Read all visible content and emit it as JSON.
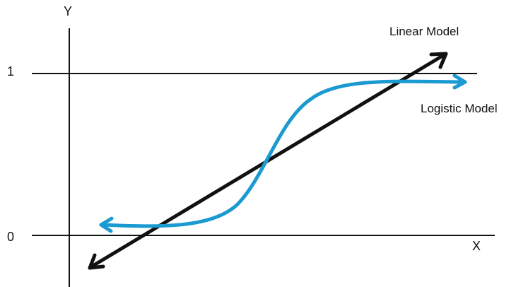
{
  "axes": {
    "y_label": "Y",
    "x_label": "X",
    "tick_one": "1",
    "tick_zero": "0"
  },
  "models": {
    "linear_label": "Linear Model",
    "logistic_label": "Logistic Model"
  },
  "colors": {
    "axis": "#111111",
    "linear": "#111111",
    "logistic": "#1b9ad1",
    "background": "#ffffff"
  }
}
